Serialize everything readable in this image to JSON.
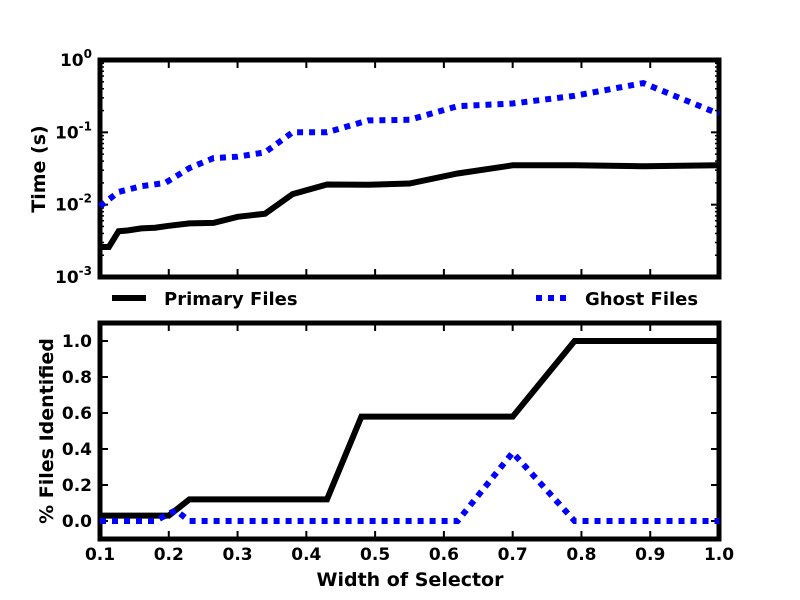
{
  "chart_data": [
    {
      "type": "line",
      "title": "",
      "xlabel": "",
      "ylabel": "Time (s)",
      "yscale": "log",
      "xlim": [
        0.1,
        1.0
      ],
      "ylim": [
        0.001,
        1.0
      ],
      "yticks": [
        {
          "value": 0.001,
          "base": "10",
          "exp": "-3"
        },
        {
          "value": 0.01,
          "base": "10",
          "exp": "-2"
        },
        {
          "value": 0.1,
          "base": "10",
          "exp": "-1"
        },
        {
          "value": 1.0,
          "base": "10",
          "exp": "0"
        }
      ],
      "grid": false,
      "legend_position": "below",
      "series": [
        {
          "name": "Primary Files",
          "color": "#000000",
          "style": "solid",
          "x": [
            0.1,
            0.113,
            0.127,
            0.14,
            0.16,
            0.18,
            0.2,
            0.23,
            0.265,
            0.3,
            0.34,
            0.38,
            0.43,
            0.49,
            0.55,
            0.62,
            0.7,
            0.79,
            0.89,
            1.0
          ],
          "y": [
            0.0026,
            0.0026,
            0.0043,
            0.0044,
            0.0047,
            0.0048,
            0.0051,
            0.0055,
            0.0056,
            0.0068,
            0.0075,
            0.014,
            0.019,
            0.0188,
            0.0196,
            0.027,
            0.035,
            0.035,
            0.034,
            0.035
          ]
        },
        {
          "name": "Ghost Files",
          "color": "#0000ff",
          "style": "dotted",
          "x": [
            0.1,
            0.127,
            0.16,
            0.195,
            0.23,
            0.265,
            0.3,
            0.34,
            0.38,
            0.43,
            0.49,
            0.55,
            0.62,
            0.7,
            0.79,
            0.89,
            1.0
          ],
          "y": [
            0.0095,
            0.015,
            0.018,
            0.02,
            0.032,
            0.044,
            0.046,
            0.053,
            0.1,
            0.1,
            0.146,
            0.149,
            0.23,
            0.25,
            0.32,
            0.48,
            0.18
          ]
        }
      ]
    },
    {
      "type": "line",
      "title": "",
      "xlabel": "Width of Selector",
      "ylabel": "% Files Identified",
      "xlim": [
        0.1,
        1.0
      ],
      "ylim": [
        -0.1,
        1.1
      ],
      "xticks": [
        "0.1",
        "0.2",
        "0.3",
        "0.4",
        "0.5",
        "0.6",
        "0.7",
        "0.8",
        "0.9",
        "1.0"
      ],
      "yticks": [
        "0.0",
        "0.2",
        "0.4",
        "0.6",
        "0.8",
        "1.0"
      ],
      "grid": false,
      "series": [
        {
          "name": "Primary Files",
          "color": "#000000",
          "style": "solid",
          "x": [
            0.1,
            0.2,
            0.23,
            0.43,
            0.48,
            0.7,
            0.79,
            1.0
          ],
          "y": [
            0.03,
            0.03,
            0.12,
            0.12,
            0.58,
            0.58,
            1.0,
            1.0
          ]
        },
        {
          "name": "Ghost Files",
          "color": "#0000ff",
          "style": "dotted",
          "x": [
            0.1,
            0.18,
            0.21,
            0.23,
            0.62,
            0.7,
            0.79,
            1.0
          ],
          "y": [
            0.0,
            0.0,
            0.06,
            0.0,
            0.0,
            0.38,
            0.0,
            0.0
          ]
        }
      ]
    }
  ]
}
